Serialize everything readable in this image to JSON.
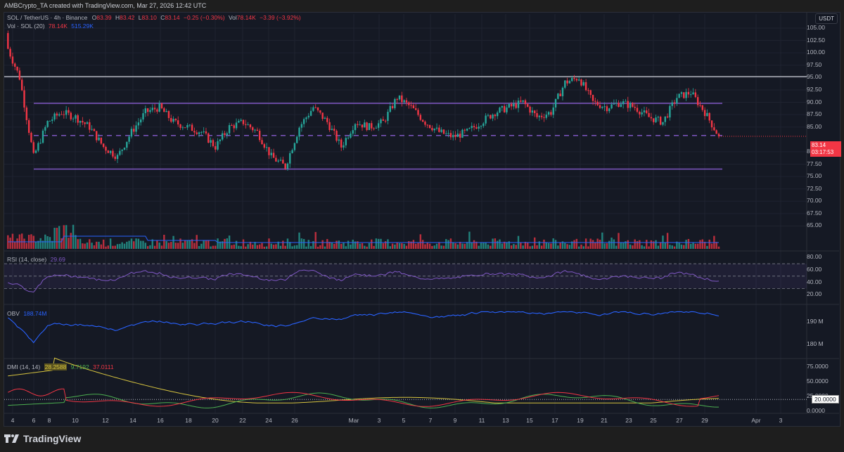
{
  "header": {
    "credit": "AMBCrypto_TA created with TradingView.com, Mar 27, 2026 12:42 UTC",
    "symbol": "SOL / TetherUS · 4h · Binance",
    "open_label": "O",
    "open": "83.39",
    "high_label": "H",
    "high": "83.42",
    "low_label": "L",
    "low": "83.10",
    "close_label": "C",
    "close": "83.14",
    "change": "−0.25 (−0.30%)",
    "vol_label": "Vol",
    "vol": "78.14K",
    "vol_change": "−3.39 (−3.92%)",
    "vol_indicator": "Vol · SOL (20)",
    "vol_value": "78.14K",
    "vol_ma": "515.29K"
  },
  "currency": "USDT",
  "price_tag": {
    "price": "83.14",
    "countdown": "03:17:53"
  },
  "colors": {
    "up": "#26a69a",
    "down": "#f23645",
    "range": "#7e57c2",
    "resistance": "#b2b5be",
    "rsi": "#7e57c2",
    "obv": "#2962ff",
    "adx": "#d6c33f",
    "plus_di": "#4caf50",
    "minus_di": "#f23645",
    "vol_ma": "#2962ff"
  },
  "price_axis": [
    "105.00",
    "102.50",
    "100.00",
    "97.50",
    "95.00",
    "92.50",
    "90.00",
    "87.50",
    "85.00",
    "80.00",
    "77.50",
    "75.00",
    "72.50",
    "70.00",
    "67.50",
    "65.00"
  ],
  "rsi": {
    "label": "RSI (14, close)",
    "value": "29.69",
    "axis": [
      "80.00",
      "60.00",
      "40.00",
      "20.00"
    ]
  },
  "obv": {
    "label": "OBV",
    "value": "188.74M",
    "axis": [
      "190 M",
      "180 M"
    ]
  },
  "dmi": {
    "label": "DMI (14, 14)",
    "adx": "28.2588",
    "plus_di": "9.7192",
    "minus_di": "37.0111",
    "axis": [
      "75.0000",
      "50.0000",
      "25.0000",
      "0.0000"
    ],
    "tag": "20.0000"
  },
  "x_axis": [
    "4",
    "6",
    "8",
    "10",
    "12",
    "14",
    "16",
    "18",
    "20",
    "22",
    "24",
    "26",
    "Mar",
    "3",
    "5",
    "7",
    "9",
    "11",
    "13",
    "15",
    "17",
    "19",
    "21",
    "23",
    "25",
    "27",
    "29",
    "Apr",
    "3"
  ],
  "brand": "TradingView",
  "chart_data": {
    "type": "candlestick",
    "title": "SOL / TetherUS · 4h · Binance",
    "ylabel": "USDT",
    "ylim": [
      64,
      106
    ],
    "x_range": [
      "Feb 4 2026",
      "Apr 3 2026"
    ],
    "levels": {
      "resistance": 95.2,
      "range_high": 89.8,
      "range_mid": 83.3,
      "range_low": 76.5
    },
    "last": {
      "open": 83.39,
      "high": 83.42,
      "low": 83.1,
      "close": 83.14
    },
    "close_path_by_day": {
      "x": [
        "Feb 4",
        "Feb 5",
        "Feb 6",
        "Feb 7",
        "Feb 8",
        "Feb 9",
        "Feb 10",
        "Feb 11",
        "Feb 12",
        "Feb 13",
        "Feb 14",
        "Feb 15",
        "Feb 16",
        "Feb 17",
        "Feb 18",
        "Feb 19",
        "Feb 20",
        "Feb 21",
        "Feb 22",
        "Feb 23",
        "Feb 24",
        "Feb 25",
        "Feb 26",
        "Feb 27",
        "Feb 28",
        "Mar 1",
        "Mar 2",
        "Mar 3",
        "Mar 4",
        "Mar 5",
        "Mar 6",
        "Mar 7",
        "Mar 8",
        "Mar 9",
        "Mar 10",
        "Mar 11",
        "Mar 12",
        "Mar 13",
        "Mar 14",
        "Mar 15",
        "Mar 16",
        "Mar 17",
        "Mar 18",
        "Mar 19",
        "Mar 20",
        "Mar 21",
        "Mar 22",
        "Mar 23",
        "Mar 24",
        "Mar 25",
        "Mar 26",
        "Mar 27"
      ],
      "close": [
        102,
        95,
        79,
        86,
        88,
        87,
        85,
        81,
        79,
        84,
        88,
        89,
        86,
        85,
        84,
        81,
        85,
        86,
        84,
        79,
        77,
        85,
        89,
        86,
        81,
        86,
        85,
        86,
        91,
        89,
        86,
        84,
        83,
        84,
        86,
        88,
        89,
        90,
        87,
        88,
        94,
        95,
        90,
        89,
        90,
        89,
        87,
        86,
        91,
        92,
        88,
        83.14
      ]
    },
    "rsi": {
      "last": 29.69,
      "bands": [
        30,
        50,
        70
      ],
      "ylim": [
        10,
        85
      ]
    },
    "obv": {
      "last_m": 188.74,
      "ylim_m": [
        176,
        194
      ]
    },
    "dmi": {
      "adx": 28.2588,
      "plus_di": 9.7192,
      "minus_di": 37.0111,
      "ref": 20
    }
  }
}
